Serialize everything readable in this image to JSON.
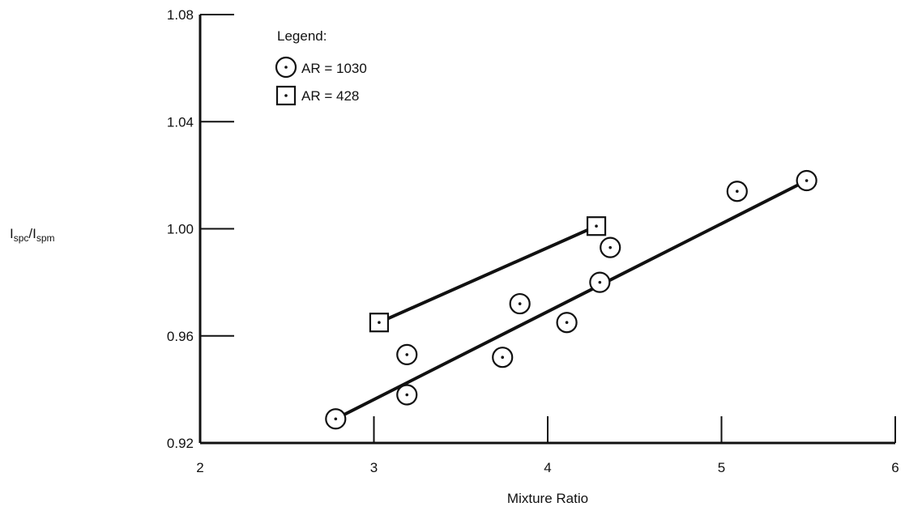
{
  "chart_data": {
    "type": "scatter",
    "xlabel": "Mixture Ratio",
    "ylabel": {
      "base1": "I",
      "sub1": "spc",
      "sep": "/I",
      "sub2": "spm"
    },
    "xlim": [
      2,
      6
    ],
    "ylim": [
      0.92,
      1.08
    ],
    "xticks": [
      2,
      3,
      4,
      5,
      6
    ],
    "yticks": [
      0.92,
      0.96,
      1.0,
      1.04,
      1.08
    ],
    "xtick_labels": [
      "2",
      "3",
      "4",
      "5",
      "6"
    ],
    "ytick_labels": [
      "0.92",
      "0.96",
      "1.00",
      "1.04",
      "1.08"
    ],
    "grid": false,
    "legend": {
      "title": "Legend:",
      "placement": "top-left",
      "entries": [
        "AR = 1030",
        "AR = 428"
      ]
    },
    "series": [
      {
        "name": "AR = 1030",
        "marker": "circle",
        "points": [
          {
            "x": 2.78,
            "y": 0.929
          },
          {
            "x": 3.19,
            "y": 0.953
          },
          {
            "x": 3.19,
            "y": 0.938
          },
          {
            "x": 3.74,
            "y": 0.952
          },
          {
            "x": 3.84,
            "y": 0.972
          },
          {
            "x": 4.11,
            "y": 0.965
          },
          {
            "x": 4.3,
            "y": 0.98
          },
          {
            "x": 4.36,
            "y": 0.993
          },
          {
            "x": 5.09,
            "y": 1.014
          },
          {
            "x": 5.49,
            "y": 1.018
          }
        ],
        "fit_line": [
          {
            "x": 2.78,
            "y": 0.929
          },
          {
            "x": 5.49,
            "y": 1.018
          }
        ]
      },
      {
        "name": "AR = 428",
        "marker": "square",
        "points": [
          {
            "x": 3.03,
            "y": 0.965
          },
          {
            "x": 4.28,
            "y": 1.001
          }
        ],
        "fit_line": [
          {
            "x": 3.03,
            "y": 0.965
          },
          {
            "x": 4.28,
            "y": 1.001
          }
        ]
      }
    ]
  }
}
